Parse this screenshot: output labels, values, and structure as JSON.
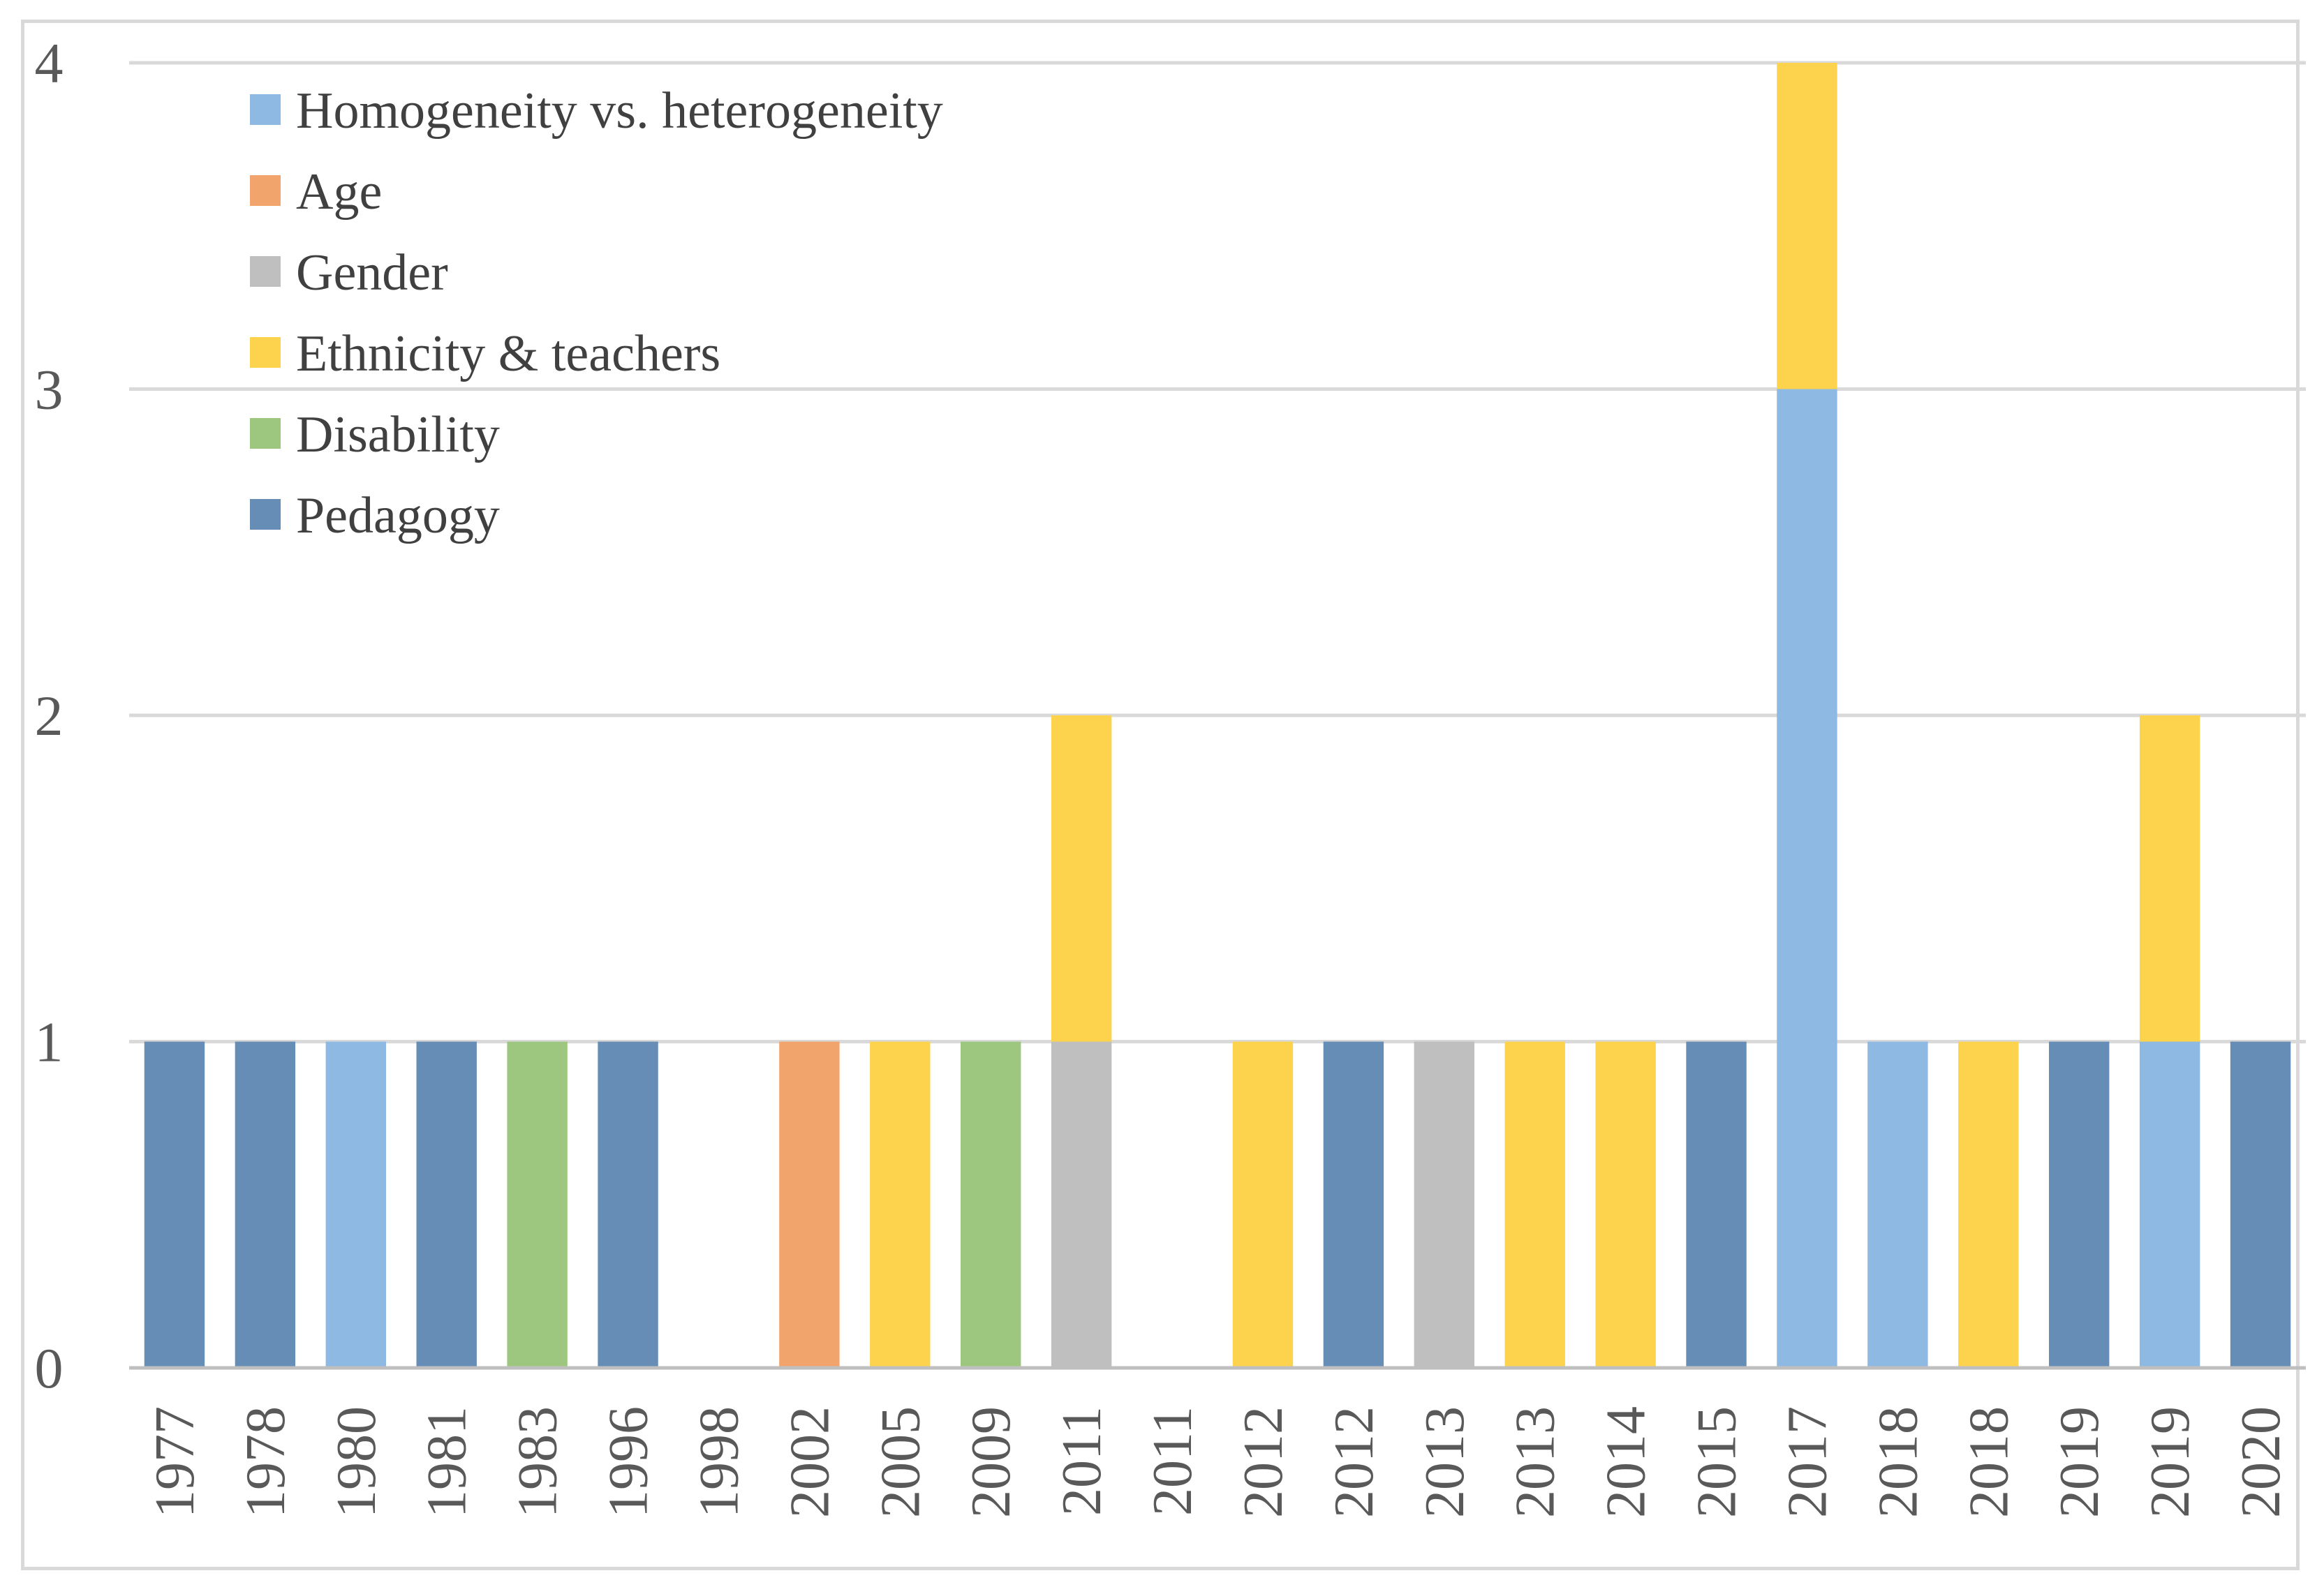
{
  "chart_data": {
    "type": "bar",
    "stacked": true,
    "title": "",
    "xlabel": "",
    "ylabel": "",
    "ylim": [
      0,
      4
    ],
    "yticks": [
      "0",
      "1",
      "2",
      "3",
      "4"
    ],
    "grid": true,
    "legend_position": "top-left",
    "categories": [
      "1977",
      "1978",
      "1980",
      "1981",
      "1983",
      "1996",
      "1998",
      "2002",
      "2005",
      "2009",
      "2011",
      "2011",
      "2012",
      "2012",
      "2013",
      "2013",
      "2014",
      "2015",
      "2017",
      "2018",
      "2018",
      "2019",
      "2019",
      "2020"
    ],
    "series": [
      {
        "name": "Homogeneity vs. heterogeneity",
        "color": "#8db9e2",
        "values": [
          0,
          0,
          1,
          0,
          0,
          0,
          0,
          0,
          0,
          0,
          0,
          0,
          0,
          0,
          0,
          0,
          0,
          0,
          3,
          1,
          0,
          0,
          1,
          0
        ]
      },
      {
        "name": "Age",
        "color": "#f1a46c",
        "values": [
          0,
          0,
          0,
          0,
          0,
          0,
          0,
          1,
          0,
          0,
          0,
          0,
          0,
          0,
          0,
          0,
          0,
          0,
          0,
          0,
          0,
          0,
          0,
          0
        ]
      },
      {
        "name": "Gender",
        "color": "#bfbfbf",
        "values": [
          0,
          0,
          0,
          0,
          0,
          0,
          0,
          0,
          0,
          0,
          1,
          0,
          0,
          0,
          1,
          0,
          0,
          0,
          0,
          0,
          0,
          0,
          0,
          0
        ]
      },
      {
        "name": "Ethnicity & teachers",
        "color": "#fdd34d",
        "values": [
          0,
          0,
          0,
          0,
          0,
          0,
          0,
          0,
          1,
          0,
          1,
          0,
          1,
          0,
          0,
          1,
          1,
          0,
          1,
          0,
          1,
          0,
          1,
          0
        ]
      },
      {
        "name": "Disability",
        "color": "#9dc77e",
        "values": [
          0,
          0,
          0,
          0,
          1,
          0,
          0,
          0,
          0,
          1,
          0,
          0,
          0,
          0,
          0,
          0,
          0,
          0,
          0,
          0,
          0,
          0,
          0,
          0
        ]
      },
      {
        "name": "Pedagogy",
        "color": "#668db5",
        "values": [
          1,
          1,
          0,
          1,
          0,
          1,
          0,
          0,
          0,
          0,
          0,
          0,
          0,
          1,
          0,
          0,
          0,
          1,
          0,
          0,
          0,
          1,
          0,
          1
        ]
      }
    ],
    "stack_order": [
      "Homogeneity vs. heterogeneity",
      "Age",
      "Gender",
      "Disability",
      "Pedagogy",
      "Ethnicity & teachers"
    ],
    "gridline_color": "#d9d9d9",
    "axis_color": "#bfbfbf"
  }
}
